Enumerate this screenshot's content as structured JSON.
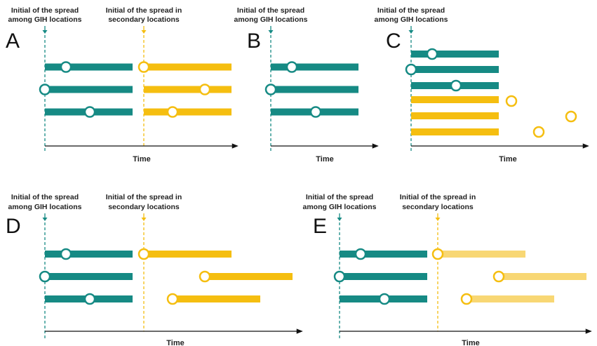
{
  "colors": {
    "teal": "#168A84",
    "gold": "#F5BE10",
    "gold_light": "#F8D774",
    "axis": "#111111",
    "text": "#222222"
  },
  "labels": {
    "gih_line1": "Initial of the spread",
    "gih_line2": "among GIH locations",
    "sec_line1": "Initial of the spread in",
    "sec_line2": "secondary locations",
    "time": "Time"
  },
  "panels": [
    {
      "letter": "A",
      "has_secondary": true
    },
    {
      "letter": "B",
      "has_secondary": false
    },
    {
      "letter": "C",
      "has_secondary": false
    },
    {
      "letter": "D",
      "has_secondary": true
    },
    {
      "letter": "E",
      "has_secondary": true
    }
  ]
}
